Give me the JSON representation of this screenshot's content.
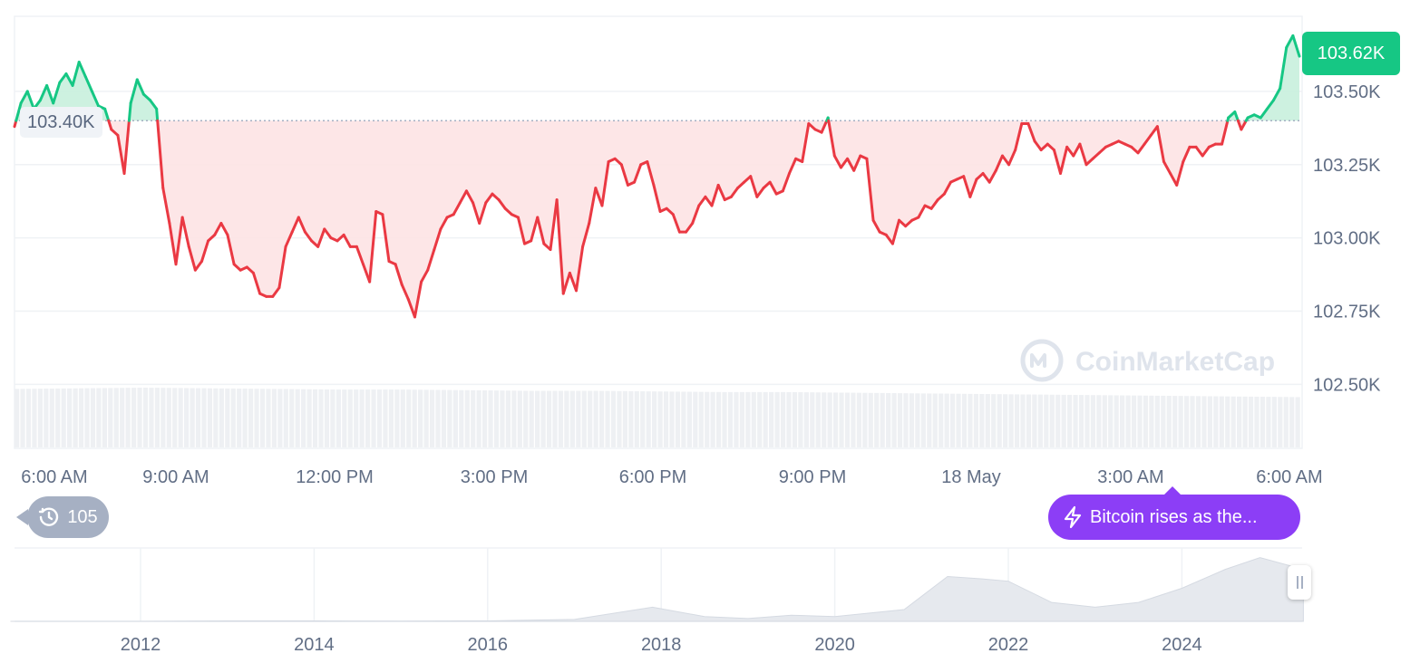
{
  "colors": {
    "up": "#16c784",
    "down": "#ea3943",
    "up_fill": "#c8f0dd",
    "down_fill": "#fde3e4",
    "grid": "#eff2f5",
    "axis_text": "#616e85",
    "news_purple": "#8c3ef6",
    "pill_gray": "#a6b0c3"
  },
  "current_price_badge": "103.62K",
  "reference_price_label": "103.40K",
  "history_badge": {
    "icon": "clock-history-icon",
    "count": "105"
  },
  "news_badge": {
    "icon": "lightning-icon",
    "text": "Bitcoin rises as the..."
  },
  "watermark": "CoinMarketCap",
  "chart_data": [
    {
      "type": "area",
      "x_ticks": [
        "6:00 AM",
        "9:00 AM",
        "12:00 PM",
        "3:00 PM",
        "6:00 PM",
        "9:00 PM",
        "18 May",
        "3:00 AM",
        "6:00 AM"
      ],
      "y_ticks": [
        "103.50K",
        "103.25K",
        "103.00K",
        "102.75K",
        "102.50K"
      ],
      "ylim": [
        102.5,
        103.75
      ],
      "baseline": 103.4,
      "last_value": 103.62,
      "grid": true,
      "values": [
        103.38,
        103.46,
        103.5,
        103.44,
        103.47,
        103.52,
        103.46,
        103.53,
        103.56,
        103.52,
        103.6,
        103.55,
        103.5,
        103.45,
        103.44,
        103.37,
        103.35,
        103.22,
        103.46,
        103.54,
        103.49,
        103.47,
        103.44,
        103.17,
        103.05,
        102.91,
        103.07,
        102.97,
        102.89,
        102.92,
        102.99,
        103.01,
        103.05,
        103.01,
        102.91,
        102.89,
        102.9,
        102.88,
        102.81,
        102.8,
        102.8,
        102.83,
        102.97,
        103.02,
        103.07,
        103.02,
        102.99,
        102.97,
        103.03,
        103.0,
        102.99,
        103.01,
        102.97,
        102.97,
        102.91,
        102.85,
        103.09,
        103.08,
        102.92,
        102.91,
        102.84,
        102.79,
        102.73,
        102.85,
        102.89,
        102.96,
        103.03,
        103.07,
        103.08,
        103.12,
        103.16,
        103.12,
        103.05,
        103.12,
        103.15,
        103.13,
        103.1,
        103.08,
        103.07,
        102.98,
        102.99,
        103.07,
        102.98,
        102.96,
        103.13,
        102.81,
        102.88,
        102.82,
        102.97,
        103.05,
        103.17,
        103.11,
        103.26,
        103.27,
        103.25,
        103.18,
        103.19,
        103.25,
        103.26,
        103.18,
        103.09,
        103.1,
        103.08,
        103.02,
        103.02,
        103.05,
        103.11,
        103.14,
        103.11,
        103.18,
        103.13,
        103.14,
        103.17,
        103.19,
        103.21,
        103.14,
        103.17,
        103.19,
        103.15,
        103.16,
        103.22,
        103.27,
        103.26,
        103.39,
        103.37,
        103.36,
        103.41,
        103.28,
        103.24,
        103.27,
        103.23,
        103.28,
        103.27,
        103.06,
        103.02,
        103.01,
        102.98,
        103.06,
        103.04,
        103.06,
        103.07,
        103.11,
        103.1,
        103.13,
        103.15,
        103.19,
        103.2,
        103.21,
        103.14,
        103.2,
        103.22,
        103.19,
        103.23,
        103.28,
        103.25,
        103.3,
        103.39,
        103.39,
        103.33,
        103.3,
        103.32,
        103.3,
        103.22,
        103.31,
        103.28,
        103.32,
        103.25,
        103.27,
        103.29,
        103.31,
        103.32,
        103.33,
        103.32,
        103.31,
        103.29,
        103.32,
        103.35,
        103.38,
        103.26,
        103.22,
        103.18,
        103.26,
        103.31,
        103.31,
        103.28,
        103.31,
        103.32,
        103.32,
        103.41,
        103.43,
        103.37,
        103.41,
        103.42,
        103.41,
        103.44,
        103.47,
        103.51,
        103.65,
        103.69,
        103.62
      ]
    },
    {
      "type": "bar",
      "note_series": "volume",
      "values": [
        0.93,
        0.94,
        0.95,
        0.94,
        0.93,
        0.92,
        0.92,
        0.91,
        0.9,
        0.9,
        0.89,
        0.88,
        0.88,
        0.87,
        0.86,
        0.85,
        0.84,
        0.83,
        0.82,
        0.81,
        0.8
      ]
    },
    {
      "type": "area",
      "x_ticks": [
        "2012",
        "2014",
        "2016",
        "2018",
        "2020",
        "2022",
        "2024"
      ],
      "x": [
        2010.5,
        2012,
        2013,
        2014,
        2015,
        2016,
        2017,
        2017.9,
        2018.5,
        2019,
        2019.5,
        2020,
        2020.8,
        2021.3,
        2021.7,
        2022,
        2022.5,
        2023,
        2023.5,
        2024,
        2024.5,
        2024.9,
        2025.4
      ],
      "values": [
        0,
        0,
        0.1,
        0.1,
        0.05,
        0.1,
        0.4,
        3,
        1,
        0.6,
        1.3,
        1,
        2.5,
        9.5,
        9,
        8.5,
        4,
        3,
        4,
        7,
        11,
        13.5,
        11
      ]
    }
  ]
}
